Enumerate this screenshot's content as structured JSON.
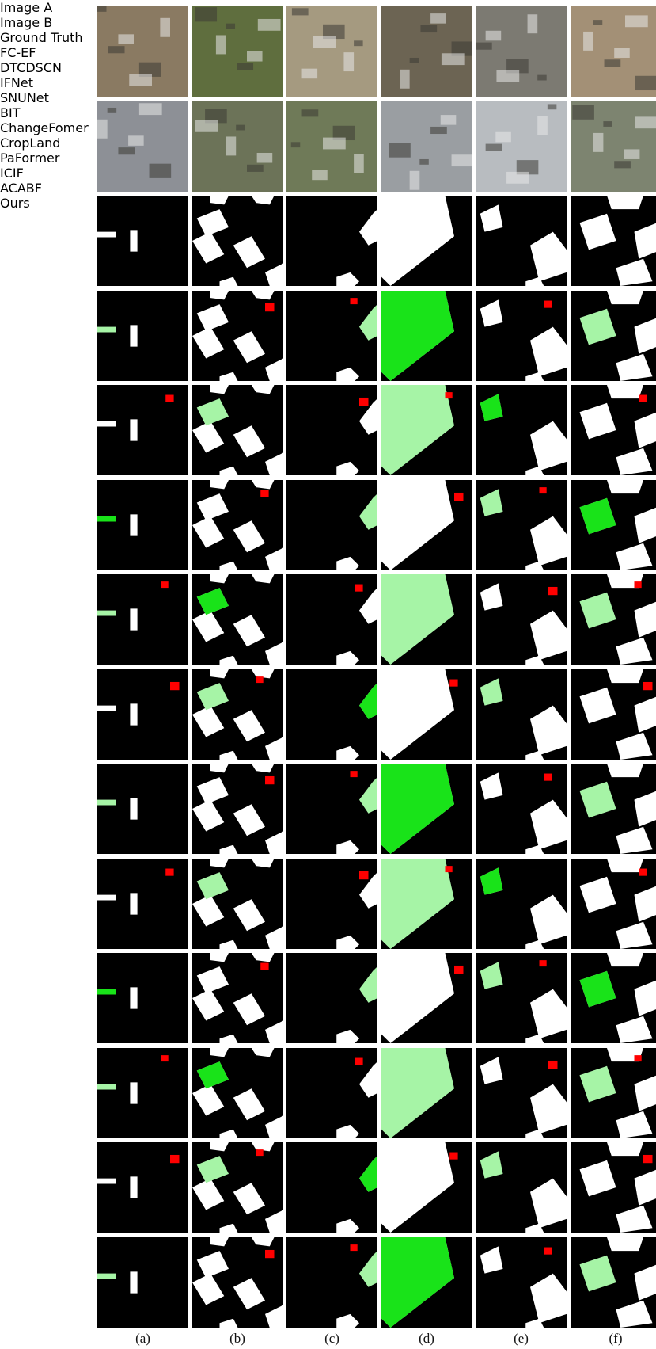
{
  "rows": [
    "Image A",
    "Image B",
    "Ground\nTruth",
    "FC-EF",
    "DTCDSCN",
    "IFNet",
    "SNUNet",
    "BIT",
    "ChangeFomer",
    "CropLand",
    "PaFormer",
    "ICIF",
    "ACABF",
    "Ours"
  ],
  "columns": [
    "(a)",
    "(b)",
    "(c)",
    "(d)",
    "(e)",
    "(f)"
  ]
}
